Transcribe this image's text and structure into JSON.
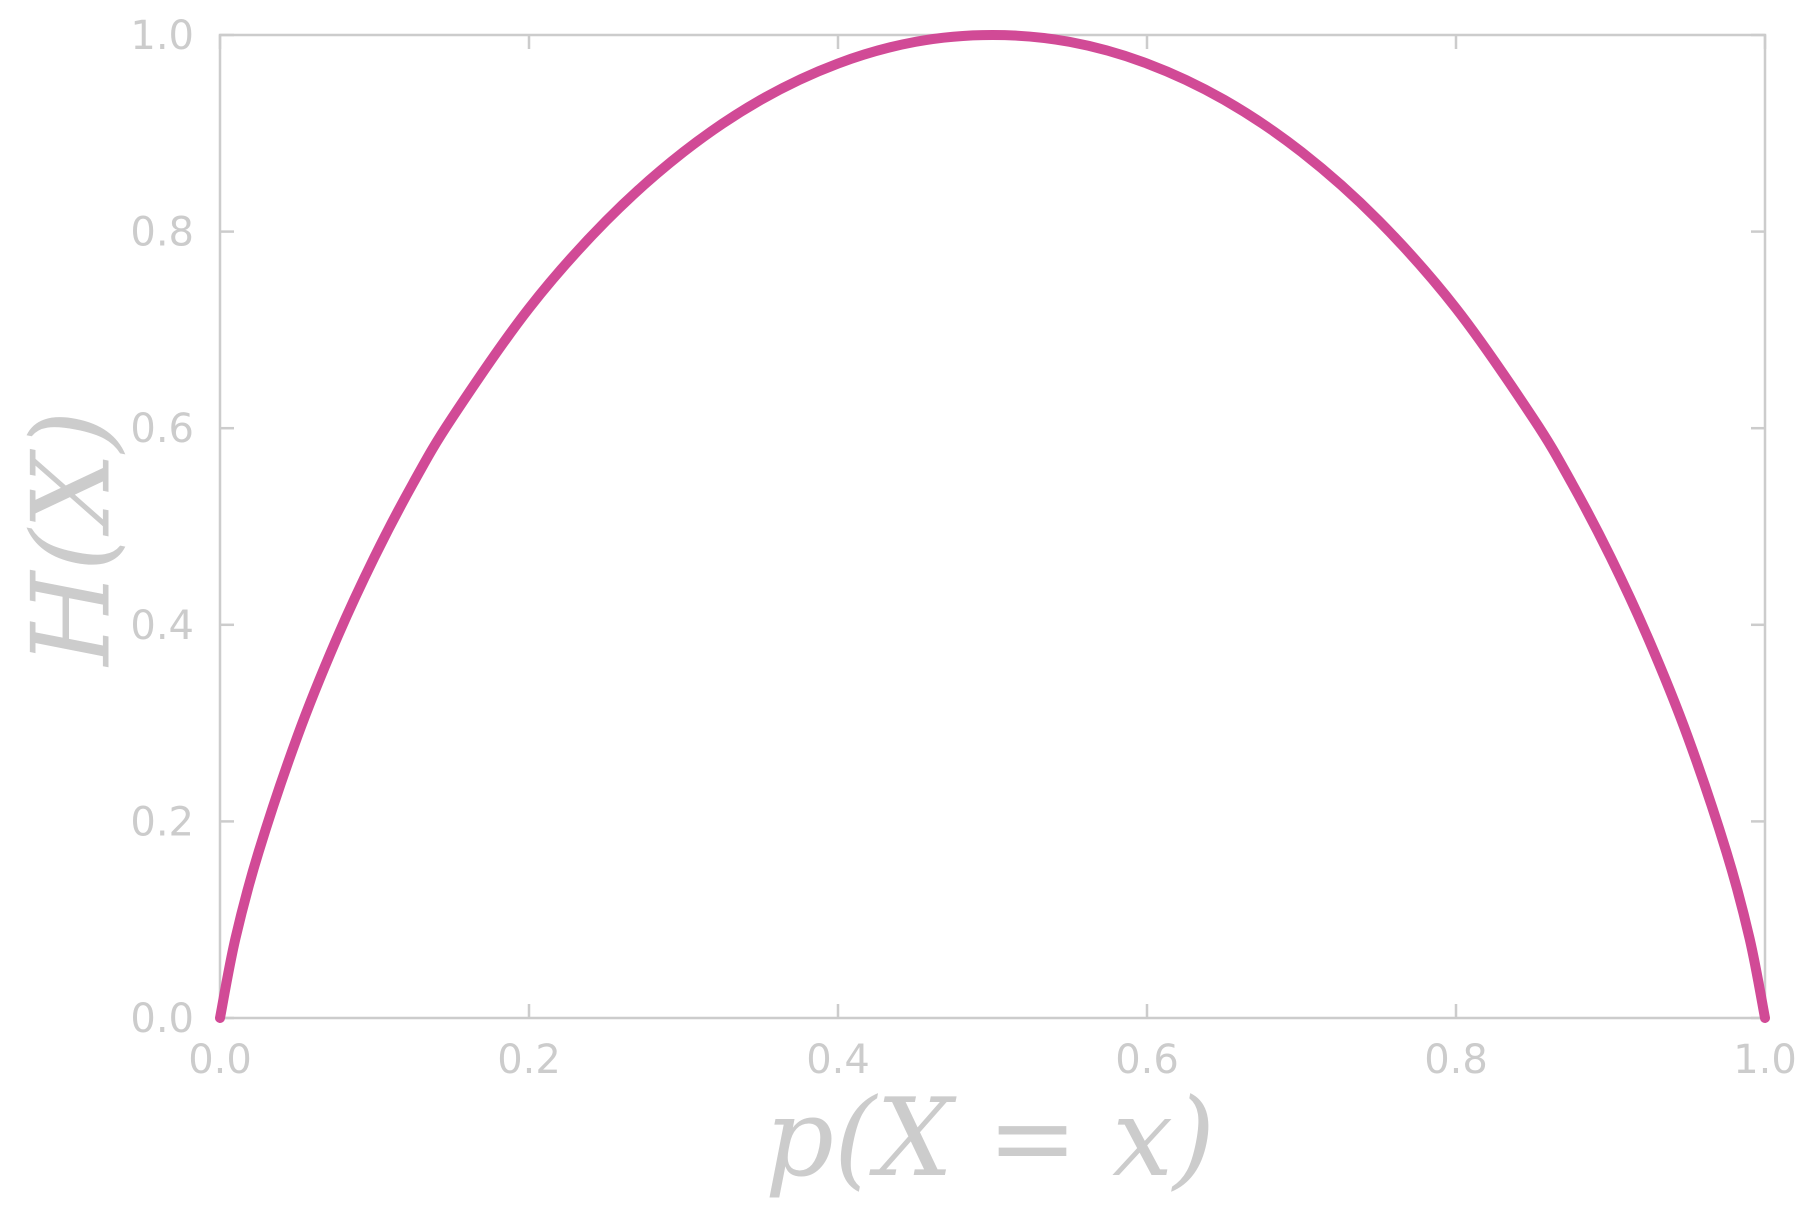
{
  "chart_data": {
    "type": "line",
    "title": "",
    "xlabel": "p(X = x)",
    "ylabel": "H(X)",
    "xlim": [
      0.0,
      1.0
    ],
    "ylim": [
      0.0,
      1.0
    ],
    "grid": false,
    "x_ticks": [
      "0.0",
      "0.2",
      "0.4",
      "0.6",
      "0.8",
      "1.0"
    ],
    "y_ticks": [
      "0.0",
      "0.2",
      "0.4",
      "0.6",
      "0.8",
      "1.0"
    ],
    "series": [
      {
        "color": "#d14a96",
        "x": [
          0.0,
          0.01,
          0.025,
          0.05,
          0.075,
          0.1,
          0.125,
          0.15,
          0.2,
          0.25,
          0.3,
          0.35,
          0.4,
          0.45,
          0.5,
          0.55,
          0.6,
          0.65,
          0.7,
          0.75,
          0.8,
          0.85,
          0.875,
          0.9,
          0.925,
          0.95,
          0.975,
          0.99,
          1.0
        ],
        "y": [
          0.0,
          0.081,
          0.169,
          0.286,
          0.384,
          0.469,
          0.544,
          0.61,
          0.722,
          0.811,
          0.881,
          0.934,
          0.971,
          0.993,
          1.0,
          0.993,
          0.971,
          0.934,
          0.881,
          0.811,
          0.722,
          0.61,
          0.544,
          0.469,
          0.384,
          0.286,
          0.169,
          0.081,
          0.0
        ]
      }
    ],
    "colors": {
      "axis": "#cccccc",
      "line": "#d14a96"
    }
  }
}
